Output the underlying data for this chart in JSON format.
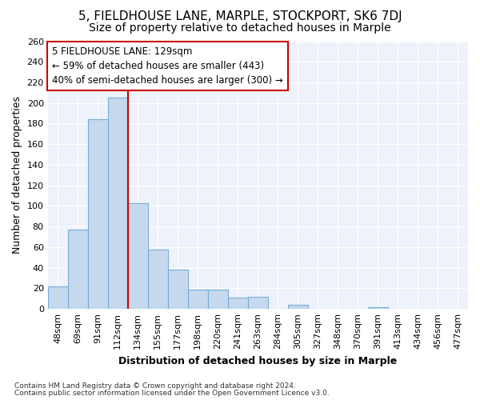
{
  "title": "5, FIELDHOUSE LANE, MARPLE, STOCKPORT, SK6 7DJ",
  "subtitle": "Size of property relative to detached houses in Marple",
  "xlabel": "Distribution of detached houses by size in Marple",
  "ylabel": "Number of detached properties",
  "bar_labels": [
    "48sqm",
    "69sqm",
    "91sqm",
    "112sqm",
    "134sqm",
    "155sqm",
    "177sqm",
    "198sqm",
    "220sqm",
    "241sqm",
    "263sqm",
    "284sqm",
    "305sqm",
    "327sqm",
    "348sqm",
    "370sqm",
    "391sqm",
    "413sqm",
    "434sqm",
    "456sqm",
    "477sqm"
  ],
  "bar_values": [
    22,
    77,
    184,
    205,
    103,
    58,
    38,
    19,
    19,
    11,
    12,
    0,
    4,
    0,
    0,
    0,
    2,
    0,
    0,
    0,
    0
  ],
  "bar_color": "#c5d8ed",
  "bar_edge_color": "#7aaed6",
  "vline_x": 3.5,
  "vline_color": "#cc0000",
  "annotation_text": "5 FIELDHOUSE LANE: 129sqm\n← 59% of detached houses are smaller (443)\n40% of semi-detached houses are larger (300) →",
  "annotation_box_color": "#ffffff",
  "annotation_box_edge": "#cc0000",
  "ylim": [
    0,
    260
  ],
  "yticks": [
    0,
    20,
    40,
    60,
    80,
    100,
    120,
    140,
    160,
    180,
    200,
    220,
    240,
    260
  ],
  "footnote1": "Contains HM Land Registry data © Crown copyright and database right 2024.",
  "footnote2": "Contains public sector information licensed under the Open Government Licence v3.0.",
  "background_color": "#ffffff",
  "plot_bg_color": "#eef2fa",
  "grid_color": "#ffffff",
  "title_fontsize": 11,
  "subtitle_fontsize": 10,
  "tick_fontsize": 8,
  "label_fontsize": 9,
  "annot_fontsize": 8.5
}
